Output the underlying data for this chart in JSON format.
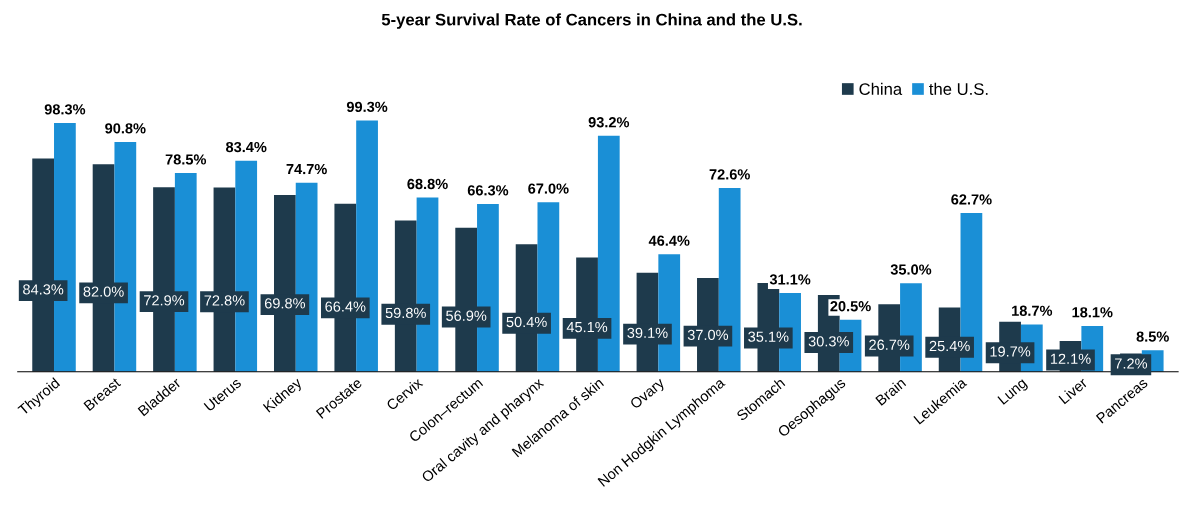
{
  "chart_data": {
    "type": "bar",
    "title": "5-year Survival Rate of Cancers in China and the U.S.",
    "categories": [
      "Thyroid",
      "Breast",
      "Bladder",
      "Uterus",
      "Kidney",
      "Prostate",
      "Cervix",
      "Colon–rectum",
      "Oral cavity and pharynx",
      "Melanoma of skin",
      "Ovary",
      "Non Hodgkin Lymphoma",
      "Stomach",
      "Oesophagus",
      "Brain",
      "Leukemia",
      "Lung",
      "Liver",
      "Pancreas"
    ],
    "series": [
      {
        "name": "China",
        "color": "#1e3a4c",
        "values": [
          84.3,
          82.0,
          72.9,
          72.8,
          69.8,
          66.4,
          59.8,
          56.9,
          50.4,
          45.1,
          39.1,
          37.0,
          35.1,
          30.3,
          26.7,
          25.4,
          19.7,
          12.1,
          7.2
        ],
        "value_labels": [
          "84.3%",
          "82.0%",
          "72.9%",
          "72.8%",
          "69.8%",
          "66.4%",
          "59.8%",
          "56.9%",
          "50.4%",
          "45.1%",
          "39.1%",
          "37.0%",
          "35.1%",
          "30.3%",
          "26.7%",
          "25.4%",
          "19.7%",
          "12.1%",
          "7.2%"
        ]
      },
      {
        "name": "the U.S.",
        "color": "#1a8fd6",
        "values": [
          98.3,
          90.8,
          78.5,
          83.4,
          74.7,
          99.3,
          68.8,
          66.3,
          67.0,
          93.2,
          46.4,
          72.6,
          31.1,
          20.5,
          35.0,
          62.7,
          18.7,
          18.1,
          8.5
        ],
        "value_labels": [
          "98.3%",
          "90.8%",
          "78.5%",
          "83.4%",
          "74.7%",
          "99.3%",
          "68.8%",
          "66.3%",
          "67.0%",
          "93.2%",
          "46.4%",
          "72.6%",
          "31.1%",
          "20.5%",
          "35.0%",
          "62.7%",
          "18.7%",
          "18.1%",
          "8.5%"
        ]
      }
    ],
    "legend": "top right",
    "grid": false
  }
}
